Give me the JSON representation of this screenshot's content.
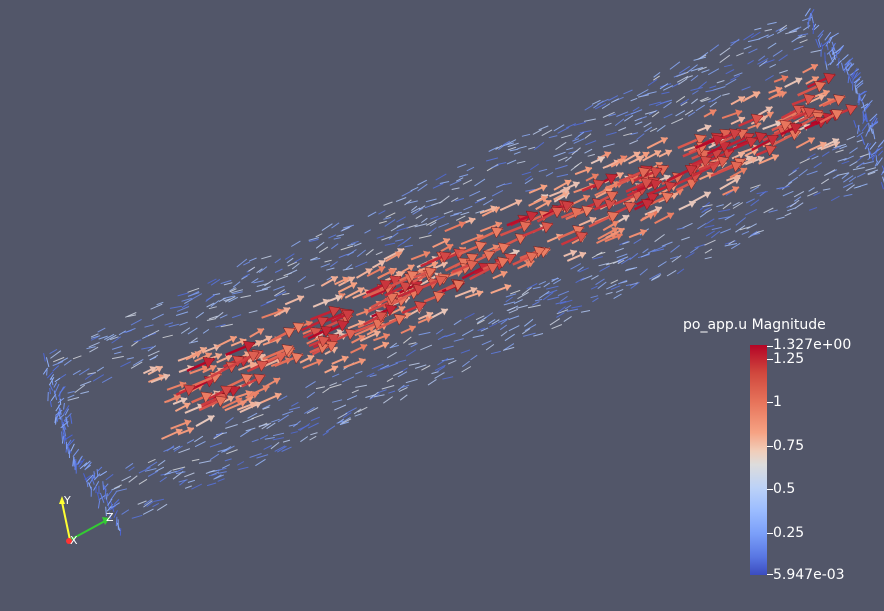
{
  "legend": {
    "title": "po_app.u Magnitude",
    "max_label": "1.327e+00",
    "min_label": "5.947e-03",
    "ticks": [
      "1.25",
      "1",
      "0.75",
      "0.5",
      "0.25"
    ],
    "range": [
      0.005947,
      1.327
    ],
    "colormap": "cool-to-warm",
    "colors": {
      "low": "#3b4cc0",
      "mid": "#dddcdc",
      "high": "#b40426"
    }
  },
  "axes": {
    "x_label": "X",
    "y_label": "Y",
    "z_label": "Z",
    "x_color": "#ff3333",
    "y_color": "#ffff33",
    "z_color": "#33cc33"
  },
  "background_color": "#525669"
}
